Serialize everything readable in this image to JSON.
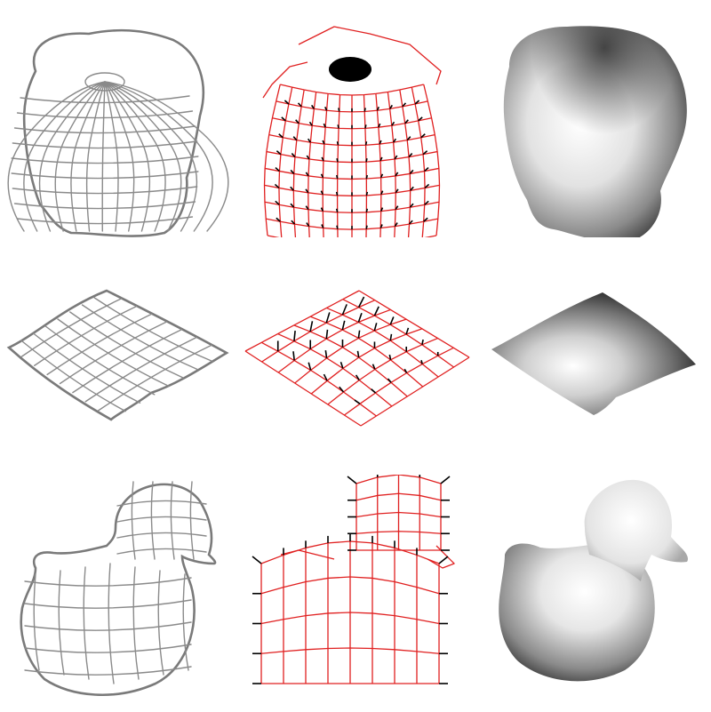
{
  "figure": {
    "rows": [
      {
        "name": "head",
        "panels": [
          "sketch",
          "mesh-with-normals",
          "shaded-surface"
        ]
      },
      {
        "name": "pillow",
        "panels": [
          "sketch",
          "mesh-with-normals",
          "shaded-surface"
        ]
      },
      {
        "name": "duck",
        "panels": [
          "sketch",
          "mesh-with-normals",
          "shaded-surface"
        ]
      }
    ],
    "colors": {
      "sketch_stroke": "#8a8a8a",
      "mesh_stroke": "#e02020",
      "normal_stroke": "#000000",
      "shade_dark": "#2a2a2a",
      "shade_light": "#ffffff",
      "background": "#ffffff"
    }
  }
}
